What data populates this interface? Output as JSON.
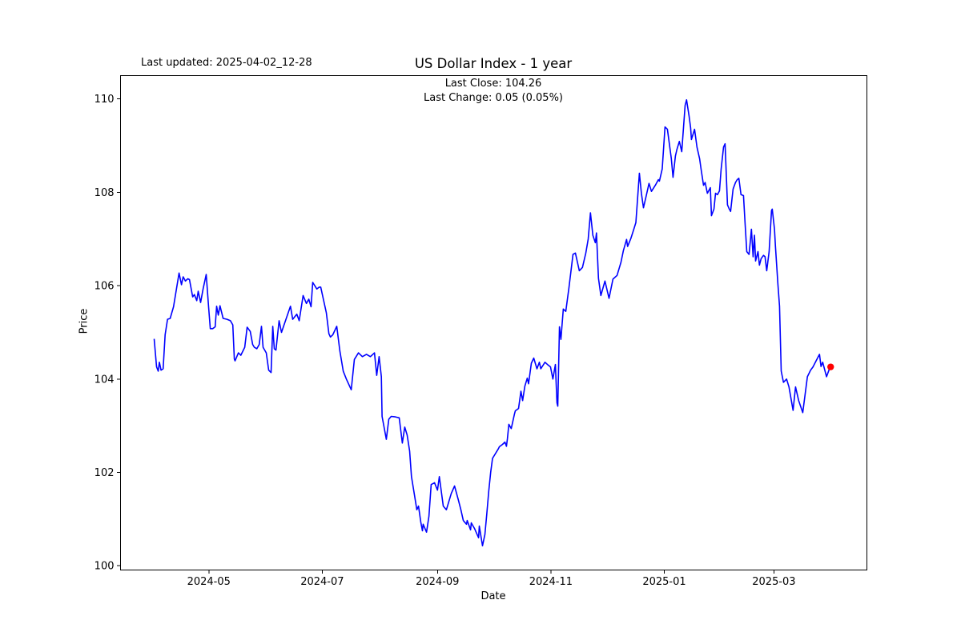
{
  "header": {
    "last_updated": "Last updated: 2025-04-02_12-28",
    "title": "US Dollar Index - 1 year"
  },
  "annotation": {
    "line1": "Last Close: 104.26",
    "line2": "Last Change: 0.05 (0.05%)"
  },
  "chart_data": {
    "type": "line",
    "title": "US Dollar Index - 1 year",
    "xlabel": "Date",
    "ylabel": "Price",
    "last_close": 104.26,
    "last_change_text": "0.05 (0.05%)",
    "line_color": "#0000ff",
    "marker_color": "#ff0000",
    "axis_color": "#000000",
    "grid": false,
    "legend": "none",
    "x_epoch": "2024-04-01",
    "xlim_days": [
      -17.5,
      384
    ],
    "ylim": [
      99.91,
      110.5
    ],
    "y_ticks": [
      100,
      102,
      104,
      106,
      108,
      110
    ],
    "x_ticks": [
      {
        "day": 30,
        "label": "2024-05"
      },
      {
        "day": 91,
        "label": "2024-07"
      },
      {
        "day": 153,
        "label": "2024-09"
      },
      {
        "day": 214,
        "label": "2024-11"
      },
      {
        "day": 275,
        "label": "2025-01"
      },
      {
        "day": 334,
        "label": "2025-03"
      }
    ],
    "end_marker": {
      "day": 364.5,
      "value": 104.26
    },
    "series": [
      {
        "name": "US Dollar Index",
        "points": [
          [
            0.6,
            104.86
          ],
          [
            1.9,
            104.26
          ],
          [
            2.8,
            104.17
          ],
          [
            3.4,
            104.36
          ],
          [
            4.3,
            104.19
          ],
          [
            5.4,
            104.22
          ],
          [
            6.5,
            104.95
          ],
          [
            7.8,
            105.28
          ],
          [
            9.2,
            105.3
          ],
          [
            11.0,
            105.55
          ],
          [
            14.0,
            106.27
          ],
          [
            15.3,
            106.02
          ],
          [
            16.2,
            106.19
          ],
          [
            17.4,
            106.1
          ],
          [
            18.7,
            106.15
          ],
          [
            19.6,
            106.13
          ],
          [
            21.3,
            105.76
          ],
          [
            22.2,
            105.81
          ],
          [
            23.5,
            105.68
          ],
          [
            24.3,
            105.88
          ],
          [
            25.6,
            105.64
          ],
          [
            26.9,
            105.93
          ],
          [
            28.6,
            106.24
          ],
          [
            29.9,
            105.54
          ],
          [
            30.8,
            105.08
          ],
          [
            32.1,
            105.08
          ],
          [
            33.4,
            105.12
          ],
          [
            34.2,
            105.56
          ],
          [
            35.1,
            105.37
          ],
          [
            36.0,
            105.57
          ],
          [
            37.7,
            105.3
          ],
          [
            39.8,
            105.28
          ],
          [
            41.6,
            105.25
          ],
          [
            42.9,
            105.16
          ],
          [
            43.7,
            104.43
          ],
          [
            44.1,
            104.39
          ],
          [
            45.9,
            104.56
          ],
          [
            47.2,
            104.51
          ],
          [
            49.3,
            104.68
          ],
          [
            50.6,
            105.11
          ],
          [
            52.3,
            105.02
          ],
          [
            53.6,
            104.74
          ],
          [
            54.5,
            104.68
          ],
          [
            55.8,
            104.65
          ],
          [
            57.1,
            104.74
          ],
          [
            58.3,
            105.13
          ],
          [
            59.2,
            104.68
          ],
          [
            60.9,
            104.56
          ],
          [
            62.2,
            104.19
          ],
          [
            63.5,
            104.14
          ],
          [
            64.4,
            105.13
          ],
          [
            65.2,
            104.65
          ],
          [
            66.1,
            104.62
          ],
          [
            67.8,
            105.25
          ],
          [
            69.1,
            105.0
          ],
          [
            70.8,
            105.2
          ],
          [
            73.9,
            105.56
          ],
          [
            75.1,
            105.28
          ],
          [
            77.3,
            105.39
          ],
          [
            78.6,
            105.25
          ],
          [
            80.7,
            105.79
          ],
          [
            82.5,
            105.62
          ],
          [
            83.8,
            105.71
          ],
          [
            85.0,
            105.55
          ],
          [
            85.9,
            106.07
          ],
          [
            88.1,
            105.93
          ],
          [
            89.4,
            105.97
          ],
          [
            90.2,
            105.97
          ],
          [
            93.2,
            105.42
          ],
          [
            94.6,
            104.97
          ],
          [
            95.4,
            104.9
          ],
          [
            96.7,
            104.95
          ],
          [
            98.8,
            105.13
          ],
          [
            100.5,
            104.6
          ],
          [
            102.3,
            104.17
          ],
          [
            104.0,
            104.0
          ],
          [
            106.6,
            103.77
          ],
          [
            108.3,
            104.42
          ],
          [
            110.5,
            104.56
          ],
          [
            112.6,
            104.48
          ],
          [
            114.8,
            104.53
          ],
          [
            116.9,
            104.48
          ],
          [
            119.1,
            104.56
          ],
          [
            120.3,
            104.08
          ],
          [
            121.6,
            104.48
          ],
          [
            122.8,
            104.05
          ],
          [
            123.2,
            103.2
          ],
          [
            125.5,
            102.71
          ],
          [
            126.8,
            103.14
          ],
          [
            128.1,
            103.2
          ],
          [
            130.3,
            103.19
          ],
          [
            132.4,
            103.17
          ],
          [
            134.1,
            102.63
          ],
          [
            135.4,
            102.97
          ],
          [
            136.7,
            102.8
          ],
          [
            138.0,
            102.46
          ],
          [
            139.0,
            101.91
          ],
          [
            140.6,
            101.52
          ],
          [
            141.9,
            101.2
          ],
          [
            142.8,
            101.28
          ],
          [
            144.0,
            100.94
          ],
          [
            144.9,
            100.75
          ],
          [
            145.3,
            100.89
          ],
          [
            147.1,
            100.72
          ],
          [
            148.4,
            101.06
          ],
          [
            149.6,
            101.74
          ],
          [
            151.4,
            101.78
          ],
          [
            153.0,
            101.62
          ],
          [
            154.0,
            101.91
          ],
          [
            156.1,
            101.28
          ],
          [
            157.8,
            101.2
          ],
          [
            160.4,
            101.55
          ],
          [
            162.2,
            101.71
          ],
          [
            164.3,
            101.4
          ],
          [
            165.6,
            101.2
          ],
          [
            166.9,
            100.97
          ],
          [
            168.6,
            100.89
          ],
          [
            169.0,
            100.97
          ],
          [
            170.8,
            100.77
          ],
          [
            171.2,
            100.92
          ],
          [
            172.9,
            100.8
          ],
          [
            175.1,
            100.6
          ],
          [
            175.5,
            100.85
          ],
          [
            177.2,
            100.43
          ],
          [
            178.5,
            100.67
          ],
          [
            179.5,
            101.1
          ],
          [
            180.6,
            101.6
          ],
          [
            181.6,
            102.0
          ],
          [
            182.6,
            102.3
          ],
          [
            185.8,
            102.51
          ],
          [
            186.3,
            102.55
          ],
          [
            188.0,
            102.6
          ],
          [
            189.3,
            102.65
          ],
          [
            190.1,
            102.56
          ],
          [
            190.6,
            102.72
          ],
          [
            191.4,
            103.03
          ],
          [
            192.7,
            102.94
          ],
          [
            194.4,
            103.25
          ],
          [
            194.9,
            103.32
          ],
          [
            196.6,
            103.37
          ],
          [
            197.9,
            103.74
          ],
          [
            198.8,
            103.54
          ],
          [
            200.0,
            103.85
          ],
          [
            201.3,
            104.02
          ],
          [
            202.0,
            103.9
          ],
          [
            203.5,
            104.34
          ],
          [
            204.8,
            104.45
          ],
          [
            206.5,
            104.22
          ],
          [
            207.8,
            104.36
          ],
          [
            208.6,
            104.22
          ],
          [
            210.8,
            104.36
          ],
          [
            212.5,
            104.3
          ],
          [
            213.8,
            104.26
          ],
          [
            215.1,
            104.0
          ],
          [
            216.4,
            104.31
          ],
          [
            217.3,
            103.49
          ],
          [
            217.7,
            103.42
          ],
          [
            218.6,
            105.12
          ],
          [
            219.4,
            104.85
          ],
          [
            220.7,
            105.5
          ],
          [
            222.0,
            105.45
          ],
          [
            223.7,
            105.95
          ],
          [
            225.9,
            106.67
          ],
          [
            227.2,
            106.7
          ],
          [
            229.3,
            106.32
          ],
          [
            231.0,
            106.39
          ],
          [
            232.8,
            106.7
          ],
          [
            234.1,
            107.0
          ],
          [
            235.3,
            107.56
          ],
          [
            236.6,
            107.08
          ],
          [
            237.9,
            106.92
          ],
          [
            238.5,
            107.13
          ],
          [
            239.6,
            106.16
          ],
          [
            240.9,
            105.79
          ],
          [
            243.1,
            106.1
          ],
          [
            245.3,
            105.73
          ],
          [
            247.4,
            106.14
          ],
          [
            249.6,
            106.22
          ],
          [
            251.7,
            106.5
          ],
          [
            253.0,
            106.75
          ],
          [
            254.7,
            106.99
          ],
          [
            255.3,
            106.84
          ],
          [
            257.0,
            107.01
          ],
          [
            258.4,
            107.18
          ],
          [
            259.7,
            107.35
          ],
          [
            261.6,
            108.41
          ],
          [
            262.7,
            107.98
          ],
          [
            263.8,
            107.67
          ],
          [
            265.3,
            107.93
          ],
          [
            266.8,
            108.19
          ],
          [
            268.1,
            108.02
          ],
          [
            270.2,
            108.15
          ],
          [
            271.8,
            108.27
          ],
          [
            272.4,
            108.24
          ],
          [
            273.9,
            108.5
          ],
          [
            275.4,
            109.4
          ],
          [
            276.7,
            109.35
          ],
          [
            278.8,
            108.72
          ],
          [
            279.7,
            108.32
          ],
          [
            281.0,
            108.78
          ],
          [
            281.8,
            108.92
          ],
          [
            283.1,
            109.09
          ],
          [
            284.4,
            108.87
          ],
          [
            286.2,
            109.86
          ],
          [
            287.0,
            109.98
          ],
          [
            288.3,
            109.64
          ],
          [
            289.2,
            109.38
          ],
          [
            289.6,
            109.13
          ],
          [
            291.3,
            109.35
          ],
          [
            292.6,
            108.97
          ],
          [
            294.0,
            108.72
          ],
          [
            294.8,
            108.5
          ],
          [
            296.1,
            108.15
          ],
          [
            297.0,
            108.21
          ],
          [
            298.2,
            107.98
          ],
          [
            299.8,
            108.1
          ],
          [
            300.4,
            107.5
          ],
          [
            301.7,
            107.64
          ],
          [
            302.6,
            107.98
          ],
          [
            303.6,
            107.95
          ],
          [
            304.7,
            108.03
          ],
          [
            305.6,
            108.5
          ],
          [
            306.9,
            108.97
          ],
          [
            307.7,
            109.04
          ],
          [
            309.0,
            107.73
          ],
          [
            310.0,
            107.64
          ],
          [
            310.7,
            107.59
          ],
          [
            312.0,
            108.07
          ],
          [
            313.3,
            108.21
          ],
          [
            314.2,
            108.27
          ],
          [
            315.1,
            108.3
          ],
          [
            316.3,
            107.95
          ],
          [
            317.6,
            107.93
          ],
          [
            318.5,
            107.3
          ],
          [
            319.4,
            106.73
          ],
          [
            320.6,
            106.67
          ],
          [
            321.3,
            106.96
          ],
          [
            321.9,
            107.21
          ],
          [
            322.8,
            106.62
          ],
          [
            323.5,
            107.08
          ],
          [
            324.1,
            106.53
          ],
          [
            325.4,
            106.73
          ],
          [
            326.2,
            106.44
          ],
          [
            327.1,
            106.58
          ],
          [
            328.4,
            106.65
          ],
          [
            329.2,
            106.62
          ],
          [
            330.1,
            106.32
          ],
          [
            331.4,
            106.73
          ],
          [
            332.7,
            107.61
          ],
          [
            333.1,
            107.64
          ],
          [
            334.3,
            107.21
          ],
          [
            334.8,
            106.84
          ],
          [
            336.1,
            106.05
          ],
          [
            337.0,
            105.56
          ],
          [
            337.9,
            104.17
          ],
          [
            339.1,
            103.93
          ],
          [
            340.8,
            104.0
          ],
          [
            342.1,
            103.83
          ],
          [
            344.3,
            103.33
          ],
          [
            345.6,
            103.83
          ],
          [
            347.3,
            103.54
          ],
          [
            349.5,
            103.28
          ],
          [
            352.0,
            104.05
          ],
          [
            353.7,
            104.19
          ],
          [
            355.0,
            104.26
          ],
          [
            358.5,
            104.53
          ],
          [
            359.3,
            104.27
          ],
          [
            360.2,
            104.36
          ],
          [
            362.3,
            104.05
          ],
          [
            363.6,
            104.19
          ],
          [
            364.5,
            104.26
          ]
        ]
      }
    ]
  }
}
